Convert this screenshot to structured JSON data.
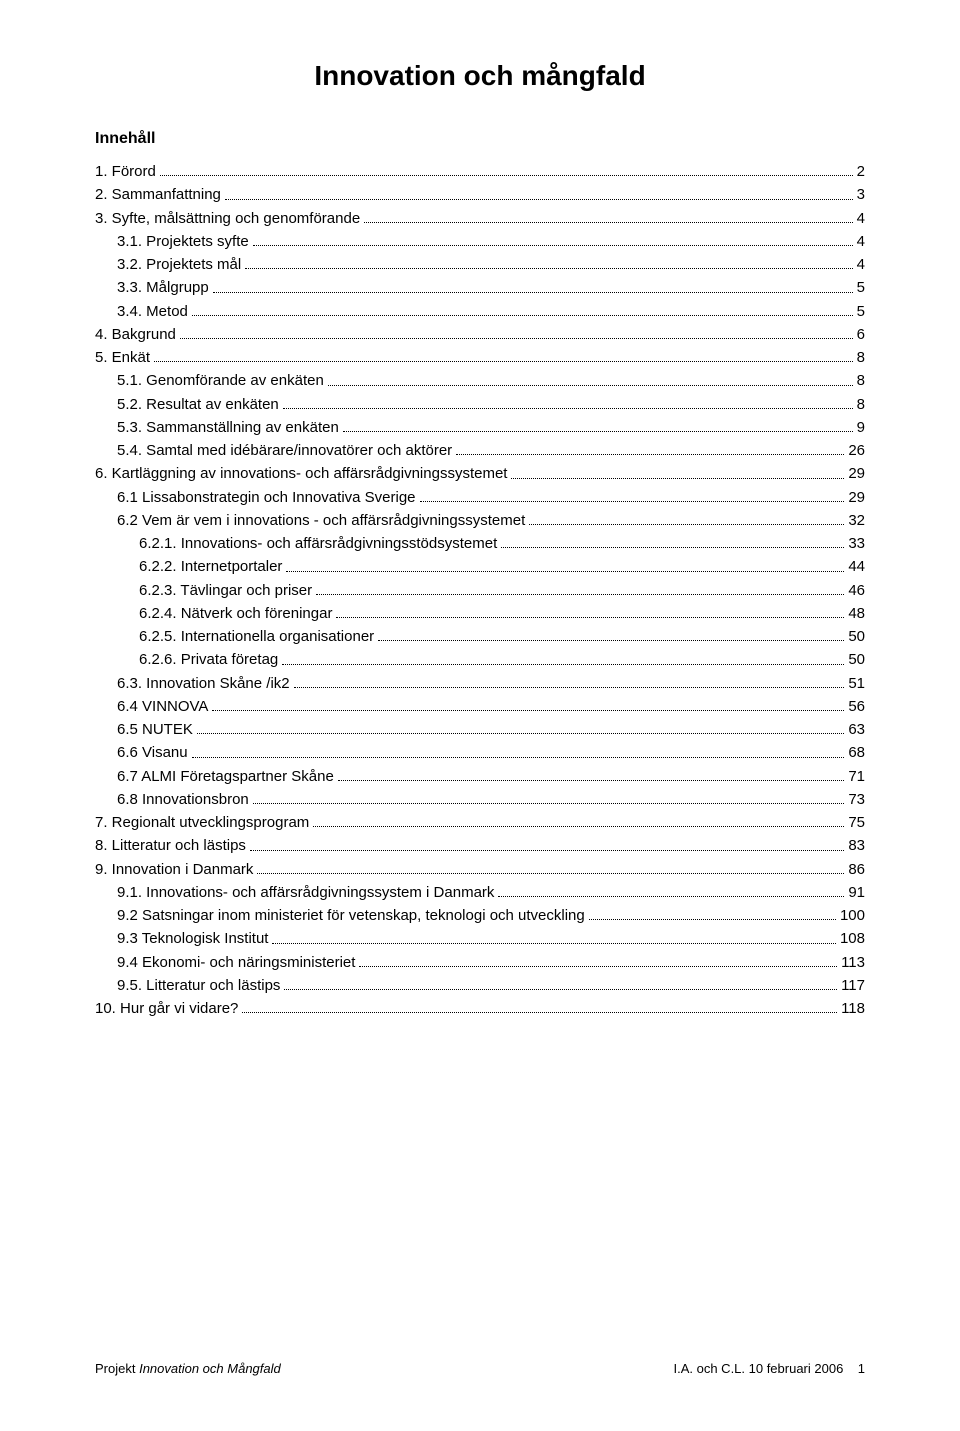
{
  "title": "Innovation och mångfald",
  "heading": "Innehåll",
  "toc": [
    {
      "label": "1. Förord",
      "page": "2",
      "indent": 0
    },
    {
      "label": "2. Sammanfattning",
      "page": "3",
      "indent": 0
    },
    {
      "label": "3. Syfte, målsättning och genomförande",
      "page": "4",
      "indent": 0
    },
    {
      "label": "3.1. Projektets syfte",
      "page": "4",
      "indent": 1
    },
    {
      "label": "3.2. Projektets mål",
      "page": "4",
      "indent": 1
    },
    {
      "label": "3.3. Målgrupp",
      "page": "5",
      "indent": 1
    },
    {
      "label": "3.4. Metod",
      "page": "5",
      "indent": 1
    },
    {
      "label": "4. Bakgrund",
      "page": "6",
      "indent": 0
    },
    {
      "label": "5. Enkät",
      "page": "8",
      "indent": 0
    },
    {
      "label": "5.1. Genomförande av enkäten",
      "page": "8",
      "indent": 1
    },
    {
      "label": "5.2. Resultat av enkäten",
      "page": "8",
      "indent": 1
    },
    {
      "label": "5.3. Sammanställning av enkäten",
      "page": "9",
      "indent": 1
    },
    {
      "label": "5.4. Samtal med idébärare/innovatörer och aktörer",
      "page": "26",
      "indent": 1
    },
    {
      "label": "6. Kartläggning av innovations- och affärsrådgivningssystemet",
      "page": "29",
      "indent": 0
    },
    {
      "label": "6.1 Lissabonstrategin och Innovativa Sverige",
      "page": "29",
      "indent": 1
    },
    {
      "label": "6.2 Vem är vem i innovations - och affärsrådgivningssystemet",
      "page": "32",
      "indent": 1
    },
    {
      "label": "6.2.1. Innovations- och affärsrådgivningsstödsystemet",
      "page": "33",
      "indent": 2
    },
    {
      "label": "6.2.2. Internetportaler",
      "page": "44",
      "indent": 2
    },
    {
      "label": "6.2.3. Tävlingar och priser",
      "page": "46",
      "indent": 2
    },
    {
      "label": "6.2.4. Nätverk och föreningar",
      "page": "48",
      "indent": 2
    },
    {
      "label": "6.2.5. Internationella organisationer",
      "page": "50",
      "indent": 2
    },
    {
      "label": "6.2.6. Privata företag",
      "page": "50",
      "indent": 2
    },
    {
      "label": "6.3. Innovation Skåne /ik2",
      "page": "51",
      "indent": 1
    },
    {
      "label": "6.4 VINNOVA",
      "page": "56",
      "indent": 1
    },
    {
      "label": "6.5 NUTEK",
      "page": "63",
      "indent": 1
    },
    {
      "label": "6.6 Visanu",
      "page": "68",
      "indent": 1
    },
    {
      "label": "6.7 ALMI Företagspartner Skåne",
      "page": "71",
      "indent": 1
    },
    {
      "label": "6.8 Innovationsbron",
      "page": "73",
      "indent": 1
    },
    {
      "label": "7. Regionalt utvecklingsprogram",
      "page": "75",
      "indent": 0
    },
    {
      "label": "8. Litteratur och lästips",
      "page": "83",
      "indent": 0
    },
    {
      "label": "9. Innovation i Danmark",
      "page": "86",
      "indent": 0
    },
    {
      "label": "9.1. Innovations- och affärsrådgivningssystem i Danmark",
      "page": "91",
      "indent": 1
    },
    {
      "label": "9.2 Satsningar inom ministeriet för vetenskap, teknologi och utveckling",
      "page": "100",
      "indent": 1
    },
    {
      "label": "9.3 Teknologisk Institut",
      "page": "108",
      "indent": 1
    },
    {
      "label": "9.4 Ekonomi- och näringsministeriet",
      "page": "113",
      "indent": 1
    },
    {
      "label": "9.5. Litteratur och lästips",
      "page": "117",
      "indent": 1
    },
    {
      "label": "10. Hur går vi vidare?",
      "page": "118",
      "indent": 0
    }
  ],
  "footer": {
    "left_plain": "Projekt ",
    "left_italic": "Innovation och Mångfald",
    "right": "I.A. och C.L. 10 februari 2006",
    "page_number": "1"
  }
}
